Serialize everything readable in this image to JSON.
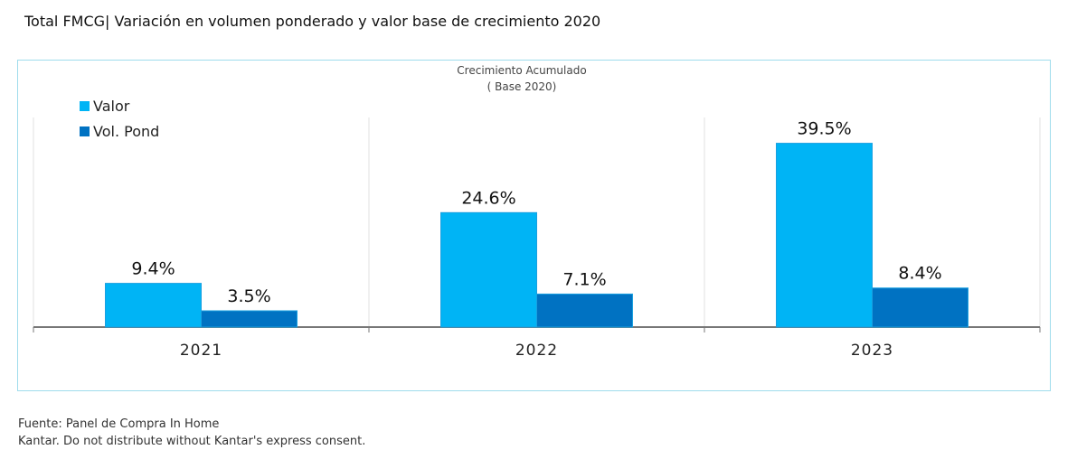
{
  "title": "Total FMCG| Variación en volumen ponderado y valor base de crecimiento 2020",
  "footer": {
    "source": "Fuente: Panel de Compra In Home",
    "disclaimer": "Kantar. Do not distribute without Kantar's express consent."
  },
  "chart_data": {
    "type": "bar",
    "title": "Crecimiento Acumulado",
    "subtitle": "( Base 2020)",
    "categories": [
      "2021",
      "2022",
      "2023"
    ],
    "series": [
      {
        "name": "Valor",
        "values": [
          9.4,
          24.6,
          39.5
        ],
        "labels": [
          "9.4%",
          "24.6%",
          "39.5%"
        ],
        "color": "#00b4f5"
      },
      {
        "name": "Vol. Pond",
        "values": [
          3.5,
          7.1,
          8.4
        ],
        "labels": [
          "3.5%",
          "7.1%",
          "8.4%"
        ],
        "color": "#0072c2"
      }
    ],
    "ylim": [
      0,
      45
    ],
    "legend": "top-left",
    "grid": "vertical category separators"
  }
}
